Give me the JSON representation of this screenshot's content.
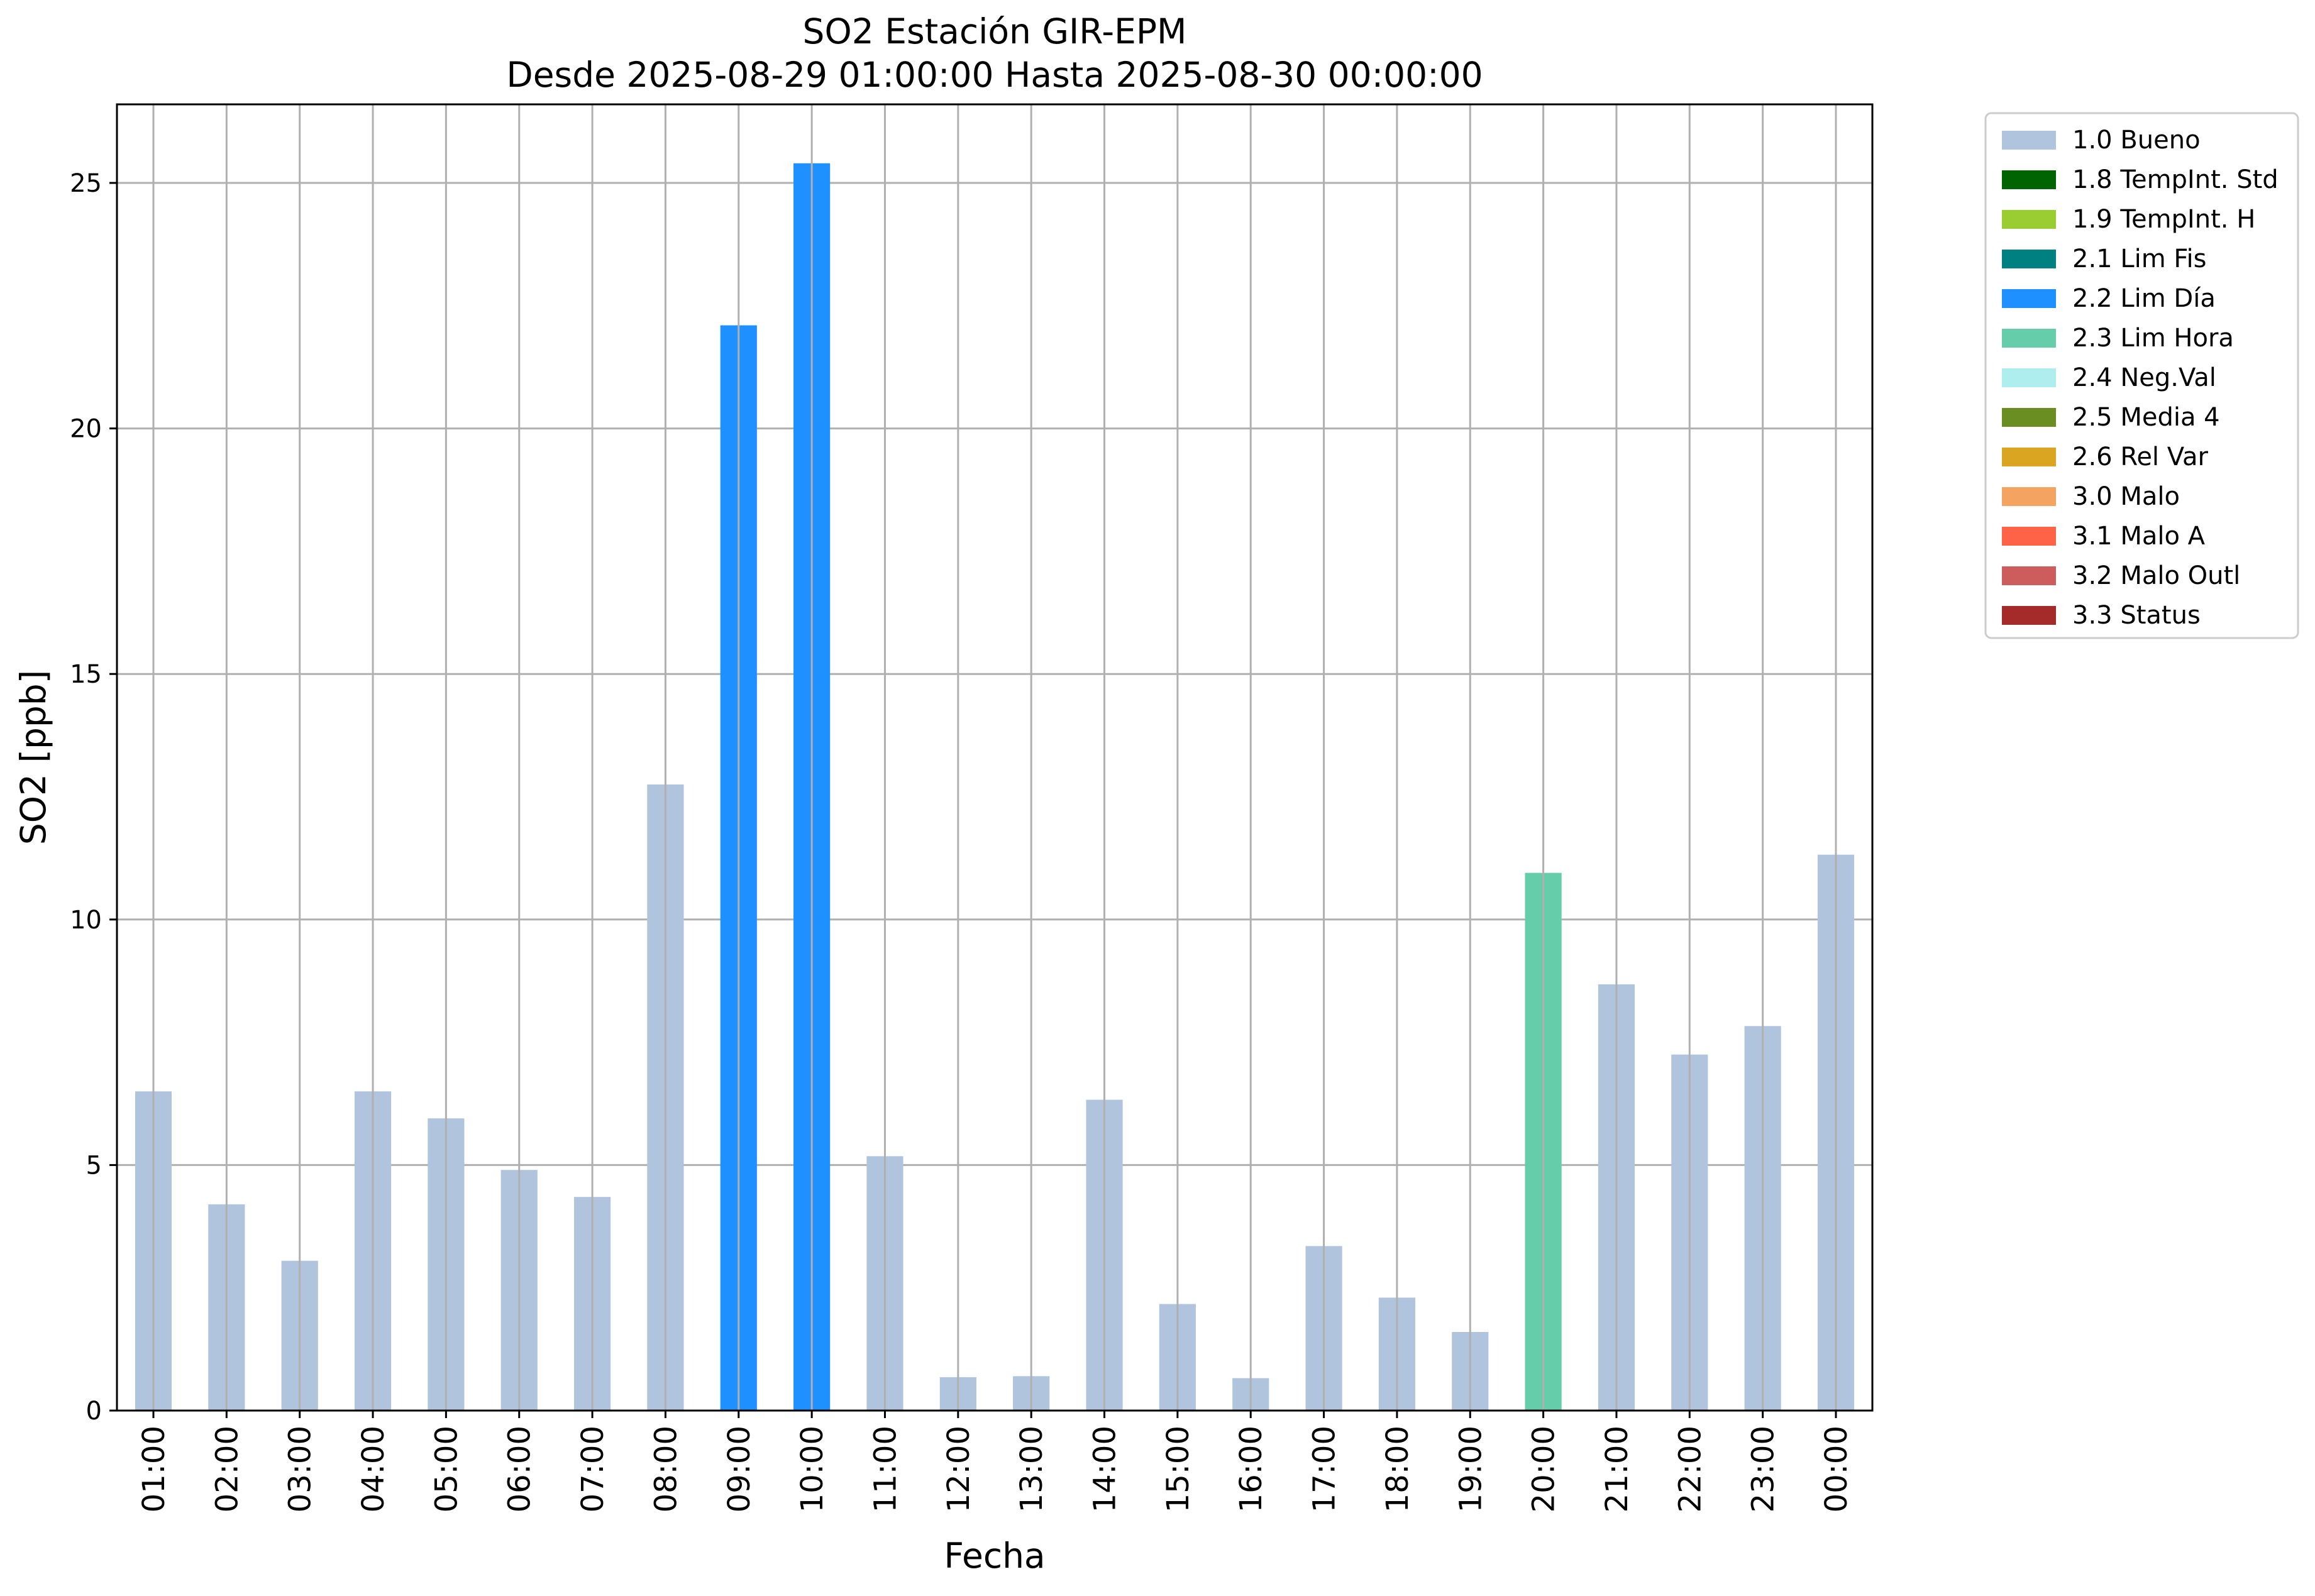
{
  "chart_data": {
    "type": "bar",
    "title": "SO2 Estación GIR-EPM",
    "subtitle": "Desde 2025-08-29 01:00:00 Hasta 2025-08-30 00:00:00",
    "xlabel": "Fecha",
    "ylabel": "SO2 [ppb]",
    "ylim": [
      0,
      26.6
    ],
    "yticks": [
      0,
      5,
      10,
      15,
      20,
      25
    ],
    "grid": true,
    "legend_position": "outside-top-right",
    "categories": [
      "01:00",
      "02:00",
      "03:00",
      "04:00",
      "05:00",
      "06:00",
      "07:00",
      "08:00",
      "09:00",
      "10:00",
      "11:00",
      "12:00",
      "13:00",
      "14:00",
      "15:00",
      "16:00",
      "17:00",
      "18:00",
      "19:00",
      "20:00",
      "21:00",
      "22:00",
      "23:00",
      "00:00"
    ],
    "values": [
      6.5,
      4.2,
      3.05,
      6.5,
      5.95,
      4.9,
      4.35,
      12.75,
      22.1,
      25.4,
      5.18,
      0.68,
      0.7,
      6.33,
      2.17,
      0.66,
      3.35,
      2.3,
      1.6,
      10.95,
      8.68,
      7.25,
      7.83,
      11.32
    ],
    "flags": [
      "1.0 Bueno",
      "1.0 Bueno",
      "1.0 Bueno",
      "1.0 Bueno",
      "1.0 Bueno",
      "1.0 Bueno",
      "1.0 Bueno",
      "1.0 Bueno",
      "2.2 Lim Día",
      "2.2 Lim Día",
      "1.0 Bueno",
      "1.0 Bueno",
      "1.0 Bueno",
      "1.0 Bueno",
      "1.0 Bueno",
      "1.0 Bueno",
      "1.0 Bueno",
      "1.0 Bueno",
      "1.0 Bueno",
      "2.3 Lim Hora",
      "1.0 Bueno",
      "1.0 Bueno",
      "1.0 Bueno",
      "1.0 Bueno"
    ],
    "legend": [
      {
        "label": "1.0 Bueno",
        "color": "#b0c4de"
      },
      {
        "label": "1.8 TempInt. Std",
        "color": "#006400"
      },
      {
        "label": "1.9 TempInt. H",
        "color": "#9acd32"
      },
      {
        "label": "2.1 Lim Fis",
        "color": "#008080"
      },
      {
        "label": "2.2 Lim Día",
        "color": "#1e90ff"
      },
      {
        "label": "2.3 Lim Hora",
        "color": "#66cdaa"
      },
      {
        "label": "2.4 Neg.Val",
        "color": "#afeeee"
      },
      {
        "label": "2.5 Media 4",
        "color": "#6b8e23"
      },
      {
        "label": "2.6 Rel Var",
        "color": "#daa520"
      },
      {
        "label": "3.0 Malo",
        "color": "#f4a460"
      },
      {
        "label": "3.1 Malo A",
        "color": "#ff6347"
      },
      {
        "label": "3.2 Malo Outl",
        "color": "#cd5c5c"
      },
      {
        "label": "3.3 Status",
        "color": "#a52a2a"
      }
    ]
  }
}
